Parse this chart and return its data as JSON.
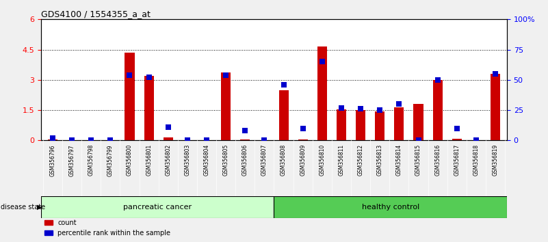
{
  "title": "GDS4100 / 1554355_a_at",
  "samples": [
    "GSM356796",
    "GSM356797",
    "GSM356798",
    "GSM356799",
    "GSM356800",
    "GSM356801",
    "GSM356802",
    "GSM356803",
    "GSM356804",
    "GSM356805",
    "GSM356806",
    "GSM356807",
    "GSM356808",
    "GSM356809",
    "GSM356810",
    "GSM356811",
    "GSM356812",
    "GSM356813",
    "GSM356814",
    "GSM356815",
    "GSM356816",
    "GSM356817",
    "GSM356818",
    "GSM356819"
  ],
  "count_values": [
    0.05,
    0.0,
    0.0,
    0.0,
    4.35,
    3.2,
    0.15,
    0.0,
    0.0,
    3.35,
    0.05,
    0.0,
    2.5,
    0.05,
    4.65,
    1.55,
    1.5,
    1.45,
    1.65,
    1.8,
    3.0,
    0.08,
    0.0,
    3.3
  ],
  "percentile_values": [
    2.0,
    0.0,
    0.0,
    0.0,
    54.0,
    52.0,
    11.0,
    0.0,
    0.0,
    54.0,
    8.0,
    0.0,
    46.0,
    10.0,
    65.0,
    27.0,
    26.0,
    25.0,
    30.0,
    0.0,
    50.0,
    10.0,
    0.0,
    55.0
  ],
  "ylim_left": [
    0,
    6
  ],
  "ylim_right": [
    0,
    100
  ],
  "yticks_left": [
    0,
    1.5,
    3.0,
    4.5,
    6.0
  ],
  "ytick_labels_left": [
    "0",
    "1.5",
    "3",
    "4.5",
    "6"
  ],
  "yticks_right": [
    0,
    25,
    50,
    75,
    100
  ],
  "ytick_labels_right": [
    "0",
    "25",
    "50",
    "75",
    "100%"
  ],
  "bar_color": "#cc0000",
  "dot_color": "#0000cc",
  "plot_bg": "#ffffff",
  "cancer_bg": "#ccffcc",
  "control_bg": "#55cc55",
  "bar_width": 0.5,
  "dot_size": 28,
  "pc_count": 12,
  "hc_count": 12
}
